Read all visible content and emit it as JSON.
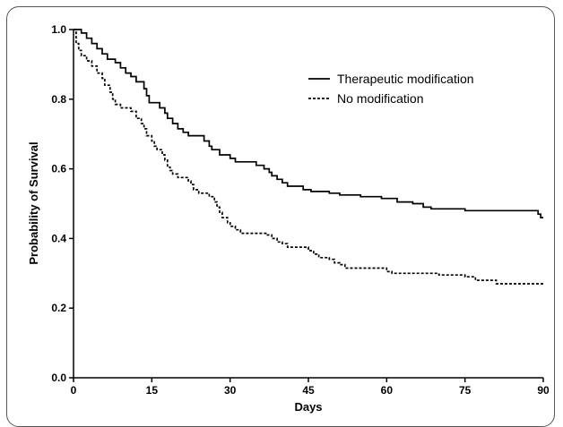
{
  "chart_data": {
    "type": "line",
    "subtype": "step",
    "title": "",
    "xlabel": "Days",
    "ylabel": "Probability of Survival",
    "xlim": [
      0,
      90
    ],
    "ylim": [
      0.0,
      1.0
    ],
    "xticks": [
      0,
      15,
      30,
      45,
      60,
      75,
      90
    ],
    "xtick_labels": [
      "0",
      "15",
      "30",
      "45",
      "60",
      "75",
      "90"
    ],
    "yticks": [
      0.0,
      0.2,
      0.4,
      0.6,
      0.8,
      1.0
    ],
    "ytick_labels": [
      "0.0",
      "0.2",
      "0.4",
      "0.6",
      "0.8",
      "1.0"
    ],
    "grid": false,
    "legend_position": "top-right",
    "series": [
      {
        "name": "Therapeutic modification",
        "line_style": "solid",
        "color": "#000000",
        "points": [
          [
            0,
            1.0
          ],
          [
            1.5,
            0.99
          ],
          [
            2.5,
            0.975
          ],
          [
            3.5,
            0.96
          ],
          [
            4.5,
            0.945
          ],
          [
            5.5,
            0.93
          ],
          [
            6.5,
            0.915
          ],
          [
            8,
            0.905
          ],
          [
            9,
            0.89
          ],
          [
            10,
            0.875
          ],
          [
            11,
            0.865
          ],
          [
            12,
            0.85
          ],
          [
            13.5,
            0.83
          ],
          [
            14,
            0.81
          ],
          [
            14.5,
            0.79
          ],
          [
            16.5,
            0.775
          ],
          [
            17.5,
            0.76
          ],
          [
            18,
            0.745
          ],
          [
            19,
            0.73
          ],
          [
            20,
            0.715
          ],
          [
            21,
            0.705
          ],
          [
            22,
            0.695
          ],
          [
            25,
            0.68
          ],
          [
            26,
            0.665
          ],
          [
            26.5,
            0.655
          ],
          [
            28,
            0.64
          ],
          [
            30,
            0.63
          ],
          [
            31,
            0.62
          ],
          [
            35,
            0.61
          ],
          [
            36.5,
            0.6
          ],
          [
            37.5,
            0.59
          ],
          [
            38,
            0.58
          ],
          [
            39,
            0.57
          ],
          [
            40,
            0.56
          ],
          [
            41,
            0.55
          ],
          [
            44,
            0.54
          ],
          [
            45.5,
            0.535
          ],
          [
            49,
            0.53
          ],
          [
            51,
            0.525
          ],
          [
            55,
            0.52
          ],
          [
            59,
            0.515
          ],
          [
            62,
            0.505
          ],
          [
            65,
            0.5
          ],
          [
            67,
            0.49
          ],
          [
            68.5,
            0.485
          ],
          [
            75,
            0.48
          ],
          [
            89,
            0.47
          ],
          [
            89.5,
            0.46
          ],
          [
            90,
            0.46
          ]
        ]
      },
      {
        "name": "No modification",
        "line_style": "dashed",
        "color": "#000000",
        "points": [
          [
            0,
            1.0
          ],
          [
            0.5,
            0.96
          ],
          [
            1,
            0.94
          ],
          [
            1.5,
            0.925
          ],
          [
            2.5,
            0.91
          ],
          [
            3.5,
            0.895
          ],
          [
            4.5,
            0.875
          ],
          [
            5.5,
            0.86
          ],
          [
            6,
            0.84
          ],
          [
            7,
            0.82
          ],
          [
            7.5,
            0.8
          ],
          [
            8,
            0.785
          ],
          [
            9,
            0.775
          ],
          [
            11,
            0.765
          ],
          [
            12,
            0.745
          ],
          [
            13,
            0.73
          ],
          [
            13.5,
            0.715
          ],
          [
            14,
            0.695
          ],
          [
            15,
            0.68
          ],
          [
            15.5,
            0.665
          ],
          [
            16,
            0.655
          ],
          [
            17,
            0.64
          ],
          [
            17.5,
            0.625
          ],
          [
            18,
            0.605
          ],
          [
            18.5,
            0.595
          ],
          [
            19,
            0.585
          ],
          [
            20,
            0.575
          ],
          [
            22,
            0.565
          ],
          [
            22.5,
            0.555
          ],
          [
            23,
            0.54
          ],
          [
            24,
            0.53
          ],
          [
            26,
            0.52
          ],
          [
            27,
            0.505
          ],
          [
            27.5,
            0.49
          ],
          [
            28,
            0.475
          ],
          [
            28.5,
            0.46
          ],
          [
            29.5,
            0.445
          ],
          [
            30,
            0.435
          ],
          [
            31,
            0.425
          ],
          [
            32,
            0.415
          ],
          [
            37,
            0.41
          ],
          [
            38,
            0.4
          ],
          [
            39,
            0.39
          ],
          [
            40,
            0.385
          ],
          [
            41,
            0.375
          ],
          [
            45,
            0.365
          ],
          [
            46,
            0.355
          ],
          [
            47,
            0.345
          ],
          [
            49,
            0.34
          ],
          [
            50,
            0.33
          ],
          [
            51,
            0.325
          ],
          [
            52,
            0.315
          ],
          [
            60,
            0.305
          ],
          [
            61,
            0.3
          ],
          [
            70,
            0.295
          ],
          [
            75,
            0.29
          ],
          [
            77,
            0.28
          ],
          [
            81,
            0.27
          ],
          [
            90,
            0.27
          ]
        ]
      }
    ]
  }
}
